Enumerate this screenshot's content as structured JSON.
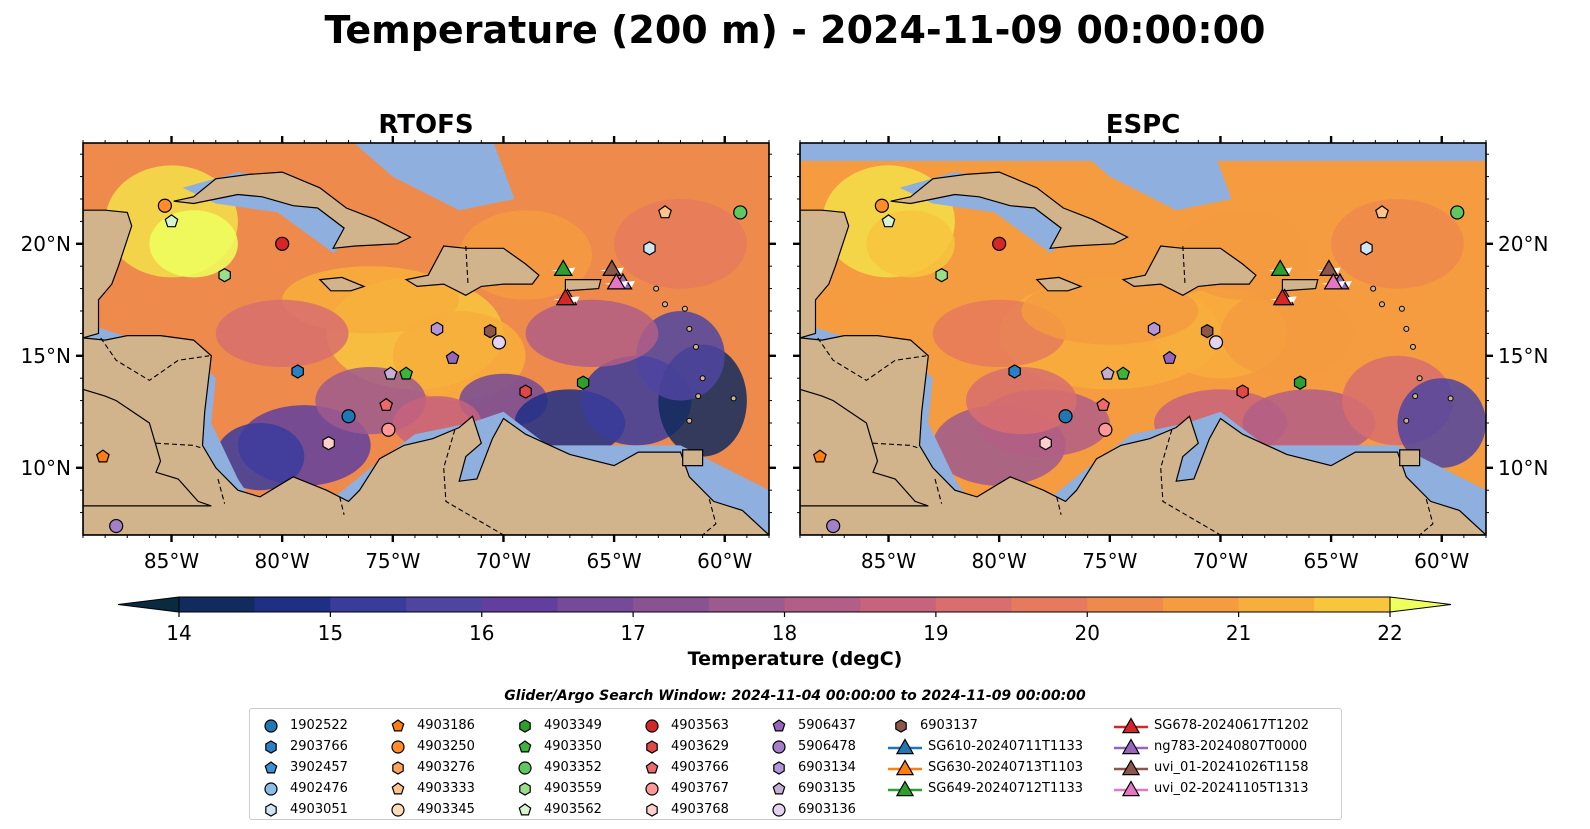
{
  "title": "Temperature (200 m) - 2024-11-09 00:00:00",
  "chart_data": {
    "type": "heatmap",
    "panels": [
      {
        "title": "RTOFS"
      },
      {
        "title": "ESPC"
      }
    ],
    "xlim": [
      -89.0,
      -58.0
    ],
    "ylim": [
      7.0,
      24.5
    ],
    "x_ticks": [
      -85,
      -80,
      -75,
      -70,
      -65,
      -60
    ],
    "x_tick_labels": [
      "85°W",
      "80°W",
      "75°W",
      "70°W",
      "65°W",
      "60°W"
    ],
    "y_ticks": [
      10,
      15,
      20
    ],
    "y_tick_labels": [
      "10°N",
      "15°N",
      "20°N"
    ],
    "colorbar": {
      "label": "Temperature (degC)",
      "min": 14,
      "max": 22,
      "step": 0.5,
      "ticks": [
        14,
        15,
        16,
        17,
        18,
        19,
        20,
        21,
        22
      ],
      "extend": "both",
      "colors": [
        "#0a2a3f",
        "#122b5e",
        "#1f2f86",
        "#3a3c9c",
        "#4f45a1",
        "#623f9e",
        "#754a98",
        "#8a5293",
        "#9d5a8e",
        "#b25e86",
        "#c7637d",
        "#d86e6e",
        "#e57a5c",
        "#ee8a4b",
        "#f59b40",
        "#f8ae3c",
        "#f7c53e",
        "#f3df4a",
        "#eeff5e"
      ]
    },
    "window_label": "Glider/Argo Search Window: 2024-11-04 00:00:00 to 2024-11-09 00:00:00",
    "argo_floats": [
      {
        "id": "1902522",
        "color": "#1f77b4",
        "marker": "circle",
        "lon": -77.0,
        "lat": 12.3
      },
      {
        "id": "2903766",
        "color": "#2a80c4",
        "marker": "hexagon",
        "lon": -79.3,
        "lat": 14.3
      },
      {
        "id": "3902457",
        "color": "#3d8ed4",
        "marker": "pentagon",
        "lon": null,
        "lat": null
      },
      {
        "id": "4902476",
        "color": "#8cbde6",
        "marker": "circle",
        "lon": null,
        "lat": null
      },
      {
        "id": "4903051",
        "color": "#cfe4f5",
        "marker": "hexagon",
        "lon": -63.4,
        "lat": 19.8
      },
      {
        "id": "4903186",
        "color": "#ff7f0e",
        "marker": "pentagon",
        "lon": -88.1,
        "lat": 10.5
      },
      {
        "id": "4903250",
        "color": "#ff8c2a",
        "marker": "circle",
        "lon": -85.3,
        "lat": 21.7
      },
      {
        "id": "4903276",
        "color": "#ffa35a",
        "marker": "hexagon",
        "lon": null,
        "lat": null
      },
      {
        "id": "4903333",
        "color": "#ffc48c",
        "marker": "pentagon",
        "lon": -62.7,
        "lat": 21.4
      },
      {
        "id": "4903345",
        "color": "#ffdcb8",
        "marker": "circle",
        "lon": null,
        "lat": null
      },
      {
        "id": "4903349",
        "color": "#2ca02c",
        "marker": "hexagon",
        "lon": -66.4,
        "lat": 13.8
      },
      {
        "id": "4903350",
        "color": "#3cb43c",
        "marker": "pentagon",
        "lon": -74.4,
        "lat": 14.2
      },
      {
        "id": "4903352",
        "color": "#5fc75f",
        "marker": "circle",
        "lon": -59.3,
        "lat": 21.4
      },
      {
        "id": "4903559",
        "color": "#98df8a",
        "marker": "hexagon",
        "lon": -82.6,
        "lat": 18.6
      },
      {
        "id": "4903562",
        "color": "#d6f5d0",
        "marker": "pentagon",
        "lon": -85.0,
        "lat": 21.0
      },
      {
        "id": "4903563",
        "color": "#d62728",
        "marker": "circle",
        "lon": -80.0,
        "lat": 20.0
      },
      {
        "id": "4903629",
        "color": "#e04848",
        "marker": "hexagon",
        "lon": -69.0,
        "lat": 13.4
      },
      {
        "id": "4903766",
        "color": "#ec6a6a",
        "marker": "pentagon",
        "lon": -75.3,
        "lat": 12.8
      },
      {
        "id": "4903767",
        "color": "#ff9896",
        "marker": "circle",
        "lon": -75.2,
        "lat": 11.7
      },
      {
        "id": "4903768",
        "color": "#ffcfcd",
        "marker": "hexagon",
        "lon": -77.9,
        "lat": 11.1
      },
      {
        "id": "5906437",
        "color": "#9467bd",
        "marker": "pentagon",
        "lon": -72.3,
        "lat": 14.9
      },
      {
        "id": "5906478",
        "color": "#a27fc8",
        "marker": "circle",
        "lon": -87.5,
        "lat": 7.4
      },
      {
        "id": "6903134",
        "color": "#b496d8",
        "marker": "hexagon",
        "lon": -73.0,
        "lat": 16.2
      },
      {
        "id": "6903135",
        "color": "#c5b0d5",
        "marker": "pentagon",
        "lon": -75.1,
        "lat": 14.2
      },
      {
        "id": "6903136",
        "color": "#e2d4f0",
        "marker": "circle",
        "lon": -70.2,
        "lat": 15.6
      },
      {
        "id": "6903137",
        "color": "#8c564b",
        "marker": "hexagon",
        "lon": -70.6,
        "lat": 16.1
      }
    ],
    "gliders": [
      {
        "id": "SG610-20240711T1133",
        "color": "#1f77b4",
        "marker": "triangle",
        "lon": null,
        "lat": null
      },
      {
        "id": "SG630-20240713T1103",
        "color": "#ff7f0e",
        "marker": "triangle",
        "lon": -67.1,
        "lat": 17.6
      },
      {
        "id": "SG649-20240712T1133",
        "color": "#2ca02c",
        "marker": "triangle",
        "lon": -67.3,
        "lat": 18.9
      },
      {
        "id": "SG678-20240617T1202",
        "color": "#d62728",
        "marker": "triangle",
        "lon": -67.2,
        "lat": 17.6
      },
      {
        "id": "ng783-20240807T0000",
        "color": "#9467bd",
        "marker": "triangle",
        "lon": -64.6,
        "lat": 18.3
      },
      {
        "id": "uvi_01-20241026T1158",
        "color": "#8c564b",
        "marker": "triangle",
        "lon": -65.1,
        "lat": 18.9
      },
      {
        "id": "uvi_02-20241105T1313",
        "color": "#e377c2",
        "marker": "triangle",
        "lon": -64.9,
        "lat": 18.3
      }
    ],
    "grid": false,
    "legend_position": "bottom-center"
  }
}
